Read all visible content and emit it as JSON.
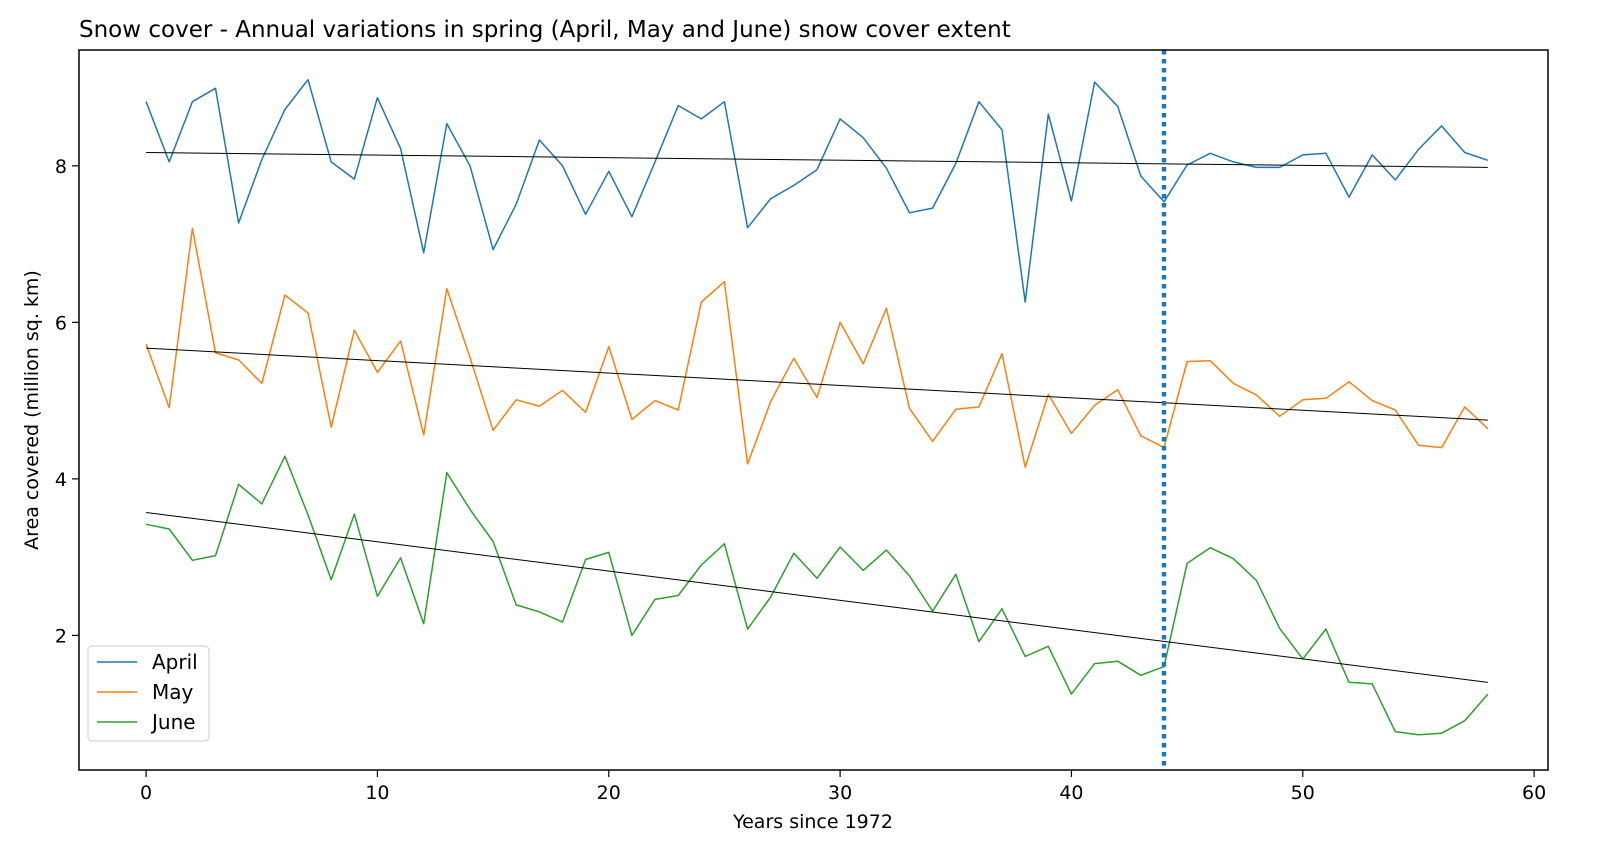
{
  "chart_data": {
    "type": "line",
    "title": "Snow cover - Annual variations in spring (April, May and June) snow cover extent",
    "xlabel": "Years since 1972",
    "ylabel": "Area covered (million sq. km)",
    "xlim": [
      -2.9,
      60.6
    ],
    "ylim": [
      0.28,
      9.48
    ],
    "xticks": [
      0,
      10,
      20,
      30,
      40,
      50,
      60
    ],
    "yticks": [
      2,
      4,
      6,
      8
    ],
    "grid": false,
    "legend_position": "lower-left",
    "vline": {
      "x": 44,
      "color": "#1f77b4",
      "style": "dotted"
    },
    "series": [
      {
        "name": "April",
        "color": "#1f77b4",
        "x": [
          0,
          1,
          2,
          3,
          4,
          5,
          6,
          7,
          8,
          9,
          10,
          11,
          12,
          13,
          14,
          15,
          16,
          17,
          18,
          19,
          20,
          21,
          22,
          23,
          24,
          25,
          26,
          27,
          28,
          29,
          30,
          31,
          32,
          33,
          34,
          35,
          36,
          37,
          38,
          39,
          40,
          41,
          42,
          43,
          44,
          45,
          46,
          47,
          48,
          49,
          50,
          51,
          52,
          53,
          54,
          55,
          56,
          57,
          58
        ],
        "values": [
          8.82,
          8.05,
          8.82,
          8.99,
          7.27,
          8.08,
          8.72,
          9.1,
          8.05,
          7.83,
          8.87,
          8.22,
          6.89,
          8.54,
          8.0,
          6.93,
          7.51,
          8.33,
          8.0,
          7.38,
          7.93,
          7.35,
          8.05,
          8.77,
          8.6,
          8.82,
          7.21,
          7.58,
          7.75,
          7.95,
          8.6,
          8.36,
          7.97,
          7.4,
          7.46,
          8.03,
          8.82,
          8.46,
          6.26,
          8.66,
          7.55,
          9.07,
          8.76,
          7.87,
          7.54,
          8.01,
          8.16,
          8.05,
          7.98,
          7.98,
          8.14,
          8.16,
          7.6,
          8.14,
          7.82,
          8.21,
          8.51,
          8.17,
          8.07
        ]
      },
      {
        "name": "May",
        "color": "#ff7f0e",
        "x": [
          0,
          1,
          2,
          3,
          4,
          5,
          6,
          7,
          8,
          9,
          10,
          11,
          12,
          13,
          14,
          15,
          16,
          17,
          18,
          19,
          20,
          21,
          22,
          23,
          24,
          25,
          26,
          27,
          28,
          29,
          30,
          31,
          32,
          33,
          34,
          35,
          36,
          37,
          38,
          39,
          40,
          41,
          42,
          43,
          44,
          45,
          46,
          47,
          48,
          49,
          50,
          51,
          52,
          53,
          54,
          55,
          56,
          57,
          58
        ],
        "values": [
          5.72,
          4.91,
          7.2,
          5.61,
          5.52,
          5.22,
          6.35,
          6.12,
          4.66,
          5.9,
          5.36,
          5.76,
          4.56,
          6.43,
          5.55,
          4.62,
          5.01,
          4.93,
          5.13,
          4.85,
          5.69,
          4.76,
          5.0,
          4.88,
          6.26,
          6.52,
          4.19,
          4.99,
          5.54,
          5.04,
          6.0,
          5.47,
          6.18,
          4.9,
          4.48,
          4.89,
          4.92,
          5.6,
          4.15,
          5.08,
          4.58,
          4.94,
          5.14,
          4.55,
          4.4,
          5.5,
          5.51,
          5.22,
          5.07,
          4.8,
          5.01,
          5.03,
          5.24,
          5.0,
          4.88,
          4.43,
          4.4,
          4.92,
          4.64
        ]
      },
      {
        "name": "June",
        "color": "#2ca02c",
        "x": [
          0,
          1,
          2,
          3,
          4,
          5,
          6,
          7,
          8,
          9,
          10,
          11,
          12,
          13,
          14,
          15,
          16,
          17,
          18,
          19,
          20,
          21,
          22,
          23,
          24,
          25,
          26,
          27,
          28,
          29,
          30,
          31,
          32,
          33,
          34,
          35,
          36,
          37,
          38,
          39,
          40,
          41,
          42,
          43,
          44,
          45,
          46,
          47,
          48,
          49,
          50,
          51,
          52,
          53,
          54,
          55,
          56,
          57,
          58
        ],
        "values": [
          3.42,
          3.36,
          2.96,
          3.02,
          3.93,
          3.68,
          4.29,
          3.54,
          2.71,
          3.55,
          2.5,
          2.99,
          2.15,
          4.08,
          3.61,
          3.2,
          2.39,
          2.3,
          2.17,
          2.97,
          3.06,
          2.0,
          2.46,
          2.51,
          2.9,
          3.17,
          2.08,
          2.49,
          3.05,
          2.73,
          3.13,
          2.83,
          3.09,
          2.76,
          2.31,
          2.78,
          1.92,
          2.34,
          1.73,
          1.86,
          1.25,
          1.64,
          1.67,
          1.49,
          1.6,
          2.92,
          3.12,
          2.98,
          2.7,
          2.09,
          1.7,
          2.08,
          1.4,
          1.38,
          0.77,
          0.73,
          0.75,
          0.91,
          1.25
        ]
      }
    ],
    "trend_lines": [
      {
        "of": "April",
        "color": "#000000",
        "x": [
          0,
          58
        ],
        "values": [
          8.17,
          7.98
        ]
      },
      {
        "of": "May",
        "color": "#000000",
        "x": [
          0,
          58
        ],
        "values": [
          5.67,
          4.75
        ]
      },
      {
        "of": "June",
        "color": "#000000",
        "x": [
          0,
          58
        ],
        "values": [
          3.57,
          1.4
        ]
      }
    ]
  }
}
